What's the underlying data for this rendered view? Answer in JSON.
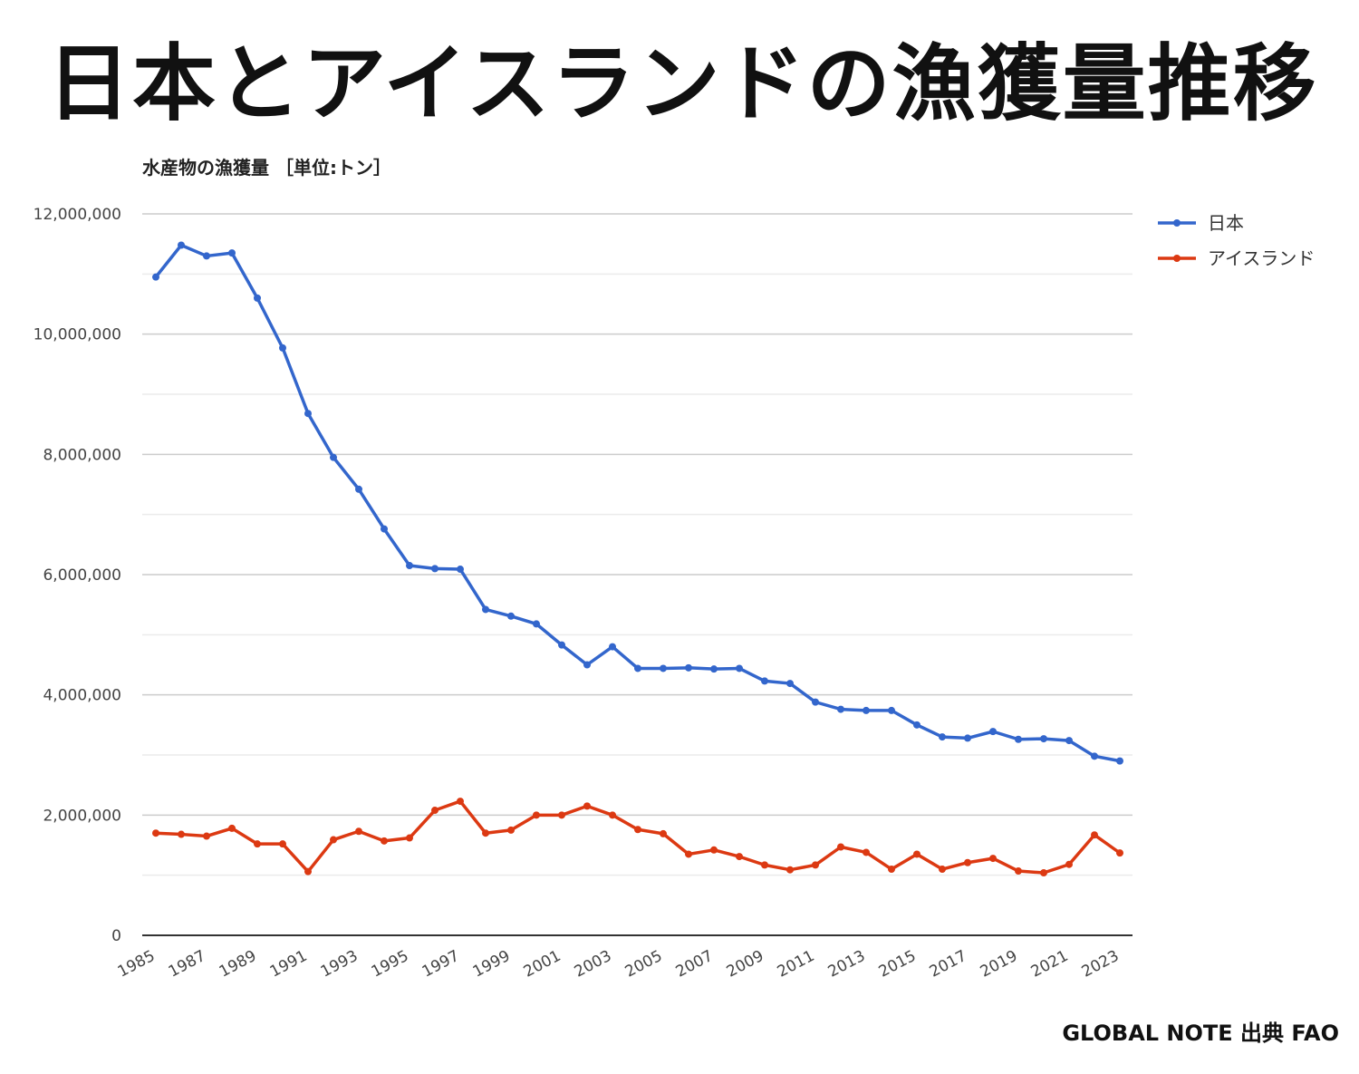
{
  "headline": "日本とアイスランドの漁獲量推移",
  "source": "GLOBAL NOTE 出典 FAO",
  "chart_data": {
    "type": "line",
    "title": "水産物の漁獲量 ［単位:トン］",
    "xlabel": "",
    "ylabel": "",
    "ylim": [
      0,
      12000000
    ],
    "y_ticks": [
      "0",
      "2,000,000",
      "4,000,000",
      "6,000,000",
      "8,000,000",
      "10,000,000",
      "12,000,000"
    ],
    "x_tick_labels": [
      "1985",
      "1987",
      "1989",
      "1991",
      "1993",
      "1995",
      "1997",
      "1999",
      "2001",
      "2003",
      "2005",
      "2007",
      "2009",
      "2011",
      "2013",
      "2015",
      "2017",
      "2019",
      "2021",
      "2023"
    ],
    "x": [
      1985,
      1986,
      1987,
      1988,
      1989,
      1990,
      1991,
      1992,
      1993,
      1994,
      1995,
      1996,
      1997,
      1998,
      1999,
      2000,
      2001,
      2002,
      2003,
      2004,
      2005,
      2006,
      2007,
      2008,
      2009,
      2010,
      2011,
      2012,
      2013,
      2014,
      2015,
      2016,
      2017,
      2018,
      2019,
      2020,
      2021,
      2022,
      2023
    ],
    "grid": true,
    "legend_position": "right",
    "series": [
      {
        "name": "日本",
        "color": "#3366cc",
        "values": [
          10950000,
          11480000,
          11300000,
          11350000,
          10600000,
          9770000,
          8680000,
          7950000,
          7420000,
          6760000,
          6150000,
          6100000,
          6090000,
          5420000,
          5310000,
          5180000,
          4830000,
          4500000,
          4800000,
          4440000,
          4440000,
          4450000,
          4430000,
          4440000,
          4230000,
          4190000,
          3880000,
          3760000,
          3740000,
          3740000,
          3500000,
          3300000,
          3280000,
          3390000,
          3260000,
          3270000,
          3240000,
          2980000,
          2900000
        ]
      },
      {
        "name": "アイスランド",
        "color": "#dc3912",
        "values": [
          1700000,
          1680000,
          1650000,
          1780000,
          1520000,
          1520000,
          1060000,
          1590000,
          1730000,
          1570000,
          1620000,
          2080000,
          2230000,
          1700000,
          1750000,
          2000000,
          2000000,
          2150000,
          2000000,
          1760000,
          1690000,
          1350000,
          1420000,
          1310000,
          1170000,
          1090000,
          1170000,
          1470000,
          1380000,
          1100000,
          1350000,
          1100000,
          1210000,
          1280000,
          1070000,
          1040000,
          1180000,
          1670000,
          1370000
        ]
      }
    ]
  }
}
